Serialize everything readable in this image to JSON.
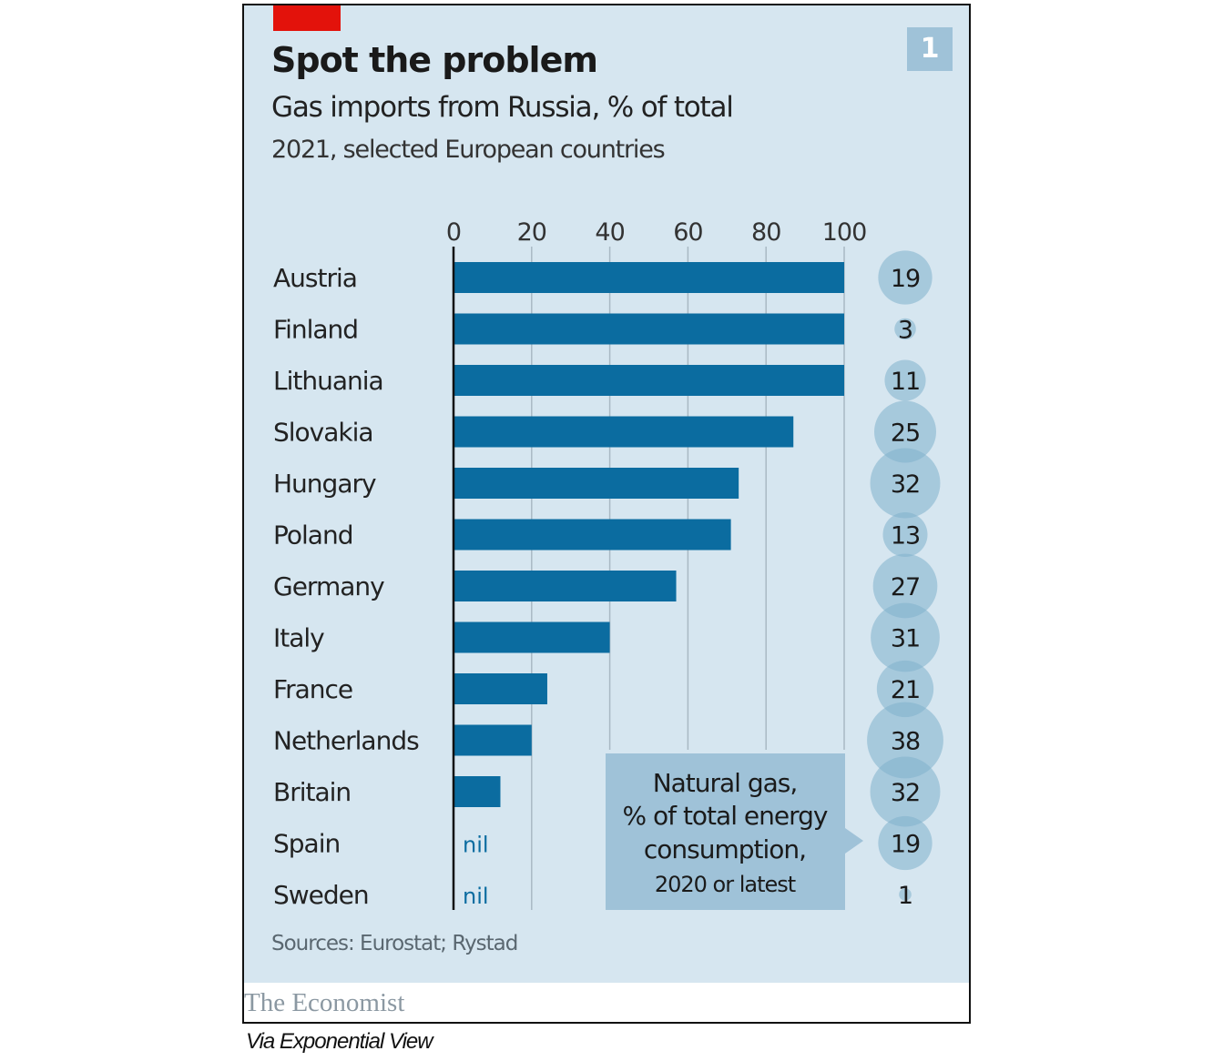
{
  "header": {
    "title": "Spot the problem",
    "subtitle": "Gas imports from Russia, % of total",
    "sub_subtitle": "2021, selected European countries",
    "badge": "1"
  },
  "footer": {
    "source": "Sources: Eurostat; Rystad",
    "brand": "The Economist",
    "via": "Via Exponential View"
  },
  "colors": {
    "background": "#d6e6f0",
    "bar": "#0b6ca0",
    "bubble": "#7fb0cc",
    "callout": "#9fc2d8",
    "accent_red": "#e3120b",
    "nil_text": "#0b6ca0"
  },
  "chart_data": {
    "type": "bar",
    "orientation": "horizontal",
    "title": "Spot the problem",
    "subtitle": "Gas imports from Russia, % of total",
    "xlabel": "",
    "ylabel": "",
    "xlim": [
      0,
      100
    ],
    "xticks": [
      0,
      20,
      40,
      60,
      80,
      100
    ],
    "grid": true,
    "categories": [
      "Austria",
      "Finland",
      "Lithuania",
      "Slovakia",
      "Hungary",
      "Poland",
      "Germany",
      "Italy",
      "France",
      "Netherlands",
      "Britain",
      "Spain",
      "Sweden"
    ],
    "series": [
      {
        "name": "Gas imports from Russia, % of total (2021)",
        "values": [
          100,
          100,
          100,
          87,
          73,
          71,
          57,
          40,
          24,
          20,
          12,
          0,
          0
        ],
        "labels": [
          "",
          "",
          "",
          "",
          "",
          "",
          "",
          "",
          "",
          "",
          "",
          "nil",
          "nil"
        ]
      },
      {
        "name": "Natural gas, % of total energy consumption, 2020 or latest",
        "type": "bubble",
        "values": [
          19,
          3,
          11,
          25,
          32,
          13,
          27,
          31,
          21,
          38,
          32,
          19,
          1
        ]
      }
    ],
    "annotation": {
      "lines": [
        "Natural gas,",
        "% of total energy",
        "consumption,",
        "2020 or latest"
      ],
      "points_to": "bubble column"
    }
  }
}
